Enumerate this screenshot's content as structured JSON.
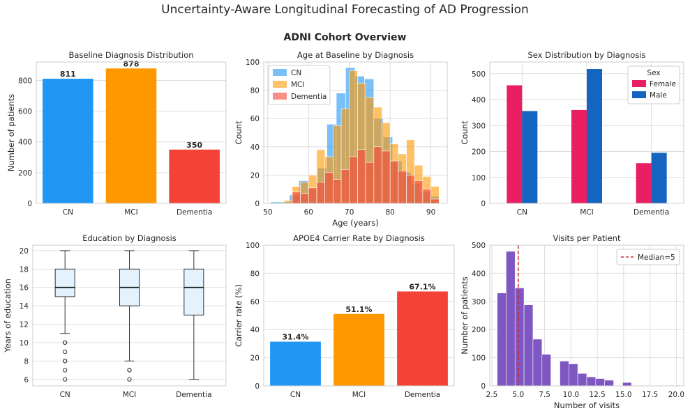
{
  "suptitle": "Uncertainty-Aware Longitudinal Forecasting of AD Progression",
  "subtitle": "ADNI Cohort Overview",
  "colors": {
    "CN": "#2196F3",
    "MCI": "#FF9800",
    "Dementia": "#F44336",
    "Female": "#E91E63",
    "Male": "#1565C0",
    "Visits": "#7E57C2",
    "median": "#d62728",
    "box_fill": "#e3f2fd",
    "grid": "#dddddd"
  },
  "chart_data": [
    {
      "type": "bar",
      "title": "Baseline Diagnosis Distribution",
      "xlabel": "",
      "ylabel": "Number of patients",
      "categories": [
        "CN",
        "MCI",
        "Dementia"
      ],
      "values": [
        811,
        878,
        350
      ],
      "data_labels": [
        "811",
        "878",
        "350"
      ],
      "ylim": [
        0,
        920
      ],
      "yticks": [
        0,
        200,
        400,
        600,
        800
      ],
      "grid": true
    },
    {
      "type": "histogram",
      "title": "Age at Baseline by Diagnosis",
      "xlabel": "Age (years)",
      "ylabel": "Count",
      "xlim": [
        49,
        94
      ],
      "ylim": [
        0,
        100
      ],
      "xticks": [
        50,
        60,
        70,
        80,
        90
      ],
      "yticks": [
        0,
        20,
        40,
        60,
        80,
        100
      ],
      "legend_position": "top-left",
      "grid": true,
      "series": [
        {
          "name": "CN",
          "bin_width": 2.3,
          "bins": [
            [
              50.7,
              1
            ],
            [
              53.0,
              1
            ],
            [
              55.3,
              6
            ],
            [
              57.6,
              16
            ],
            [
              59.9,
              10
            ],
            [
              62.2,
              25
            ],
            [
              64.5,
              56
            ],
            [
              66.8,
              78
            ],
            [
              69.1,
              96
            ],
            [
              71.4,
              90
            ],
            [
              73.7,
              88
            ],
            [
              76.0,
              60
            ],
            [
              78.3,
              47
            ],
            [
              80.6,
              30
            ],
            [
              82.9,
              22
            ],
            [
              85.2,
              14
            ],
            [
              87.5,
              8
            ],
            [
              89.8,
              5
            ]
          ]
        },
        {
          "name": "MCI",
          "bin_width": 2.0,
          "bins": [
            [
              54,
              2
            ],
            [
              56,
              12
            ],
            [
              58,
              15
            ],
            [
              60,
              20
            ],
            [
              62,
              38
            ],
            [
              64,
              33
            ],
            [
              66,
              55
            ],
            [
              68,
              67
            ],
            [
              70,
              94
            ],
            [
              72,
              85
            ],
            [
              74,
              75
            ],
            [
              76,
              68
            ],
            [
              78,
              57
            ],
            [
              80,
              42
            ],
            [
              82,
              35
            ],
            [
              84,
              45
            ],
            [
              86,
              27
            ],
            [
              88,
              19
            ],
            [
              90,
              12
            ]
          ]
        },
        {
          "name": "Dementia",
          "bin_width": 2.0,
          "bins": [
            [
              56,
              8
            ],
            [
              58,
              7
            ],
            [
              60,
              11
            ],
            [
              62,
              15
            ],
            [
              64,
              22
            ],
            [
              66,
              17
            ],
            [
              68,
              24
            ],
            [
              70,
              33
            ],
            [
              72,
              38
            ],
            [
              74,
              29
            ],
            [
              76,
              40
            ],
            [
              78,
              37
            ],
            [
              80,
              30
            ],
            [
              82,
              23
            ],
            [
              84,
              20
            ],
            [
              86,
              16
            ],
            [
              88,
              10
            ],
            [
              90,
              3
            ]
          ]
        }
      ]
    },
    {
      "type": "bar",
      "title": "Sex Distribution by Diagnosis",
      "xlabel": "",
      "ylabel": "Count",
      "categories": [
        "CN",
        "MCI",
        "Dementia"
      ],
      "legend_title": "Sex",
      "legend_position": "top-right",
      "ylim": [
        0,
        545
      ],
      "yticks": [
        0,
        100,
        200,
        300,
        400,
        500
      ],
      "grid": true,
      "series": [
        {
          "name": "Female",
          "values": [
            455,
            360,
            155
          ]
        },
        {
          "name": "Male",
          "values": [
            356,
            518,
            195
          ]
        }
      ]
    },
    {
      "type": "box",
      "title": "Education by Diagnosis",
      "xlabel": "",
      "ylabel": "Years of education",
      "categories": [
        "CN",
        "MCI",
        "Dementia"
      ],
      "ylim": [
        5.3,
        20.6
      ],
      "yticks": [
        6,
        8,
        10,
        12,
        14,
        16,
        18,
        20
      ],
      "grid": true,
      "boxes": [
        {
          "whisker_low": 11,
          "q1": 15,
          "median": 16,
          "q3": 18,
          "whisker_high": 20,
          "outliers": [
            10,
            10,
            9,
            8,
            8,
            7,
            6
          ]
        },
        {
          "whisker_low": 8,
          "q1": 14,
          "median": 16,
          "q3": 18,
          "whisker_high": 20,
          "outliers": [
            7,
            7,
            6
          ]
        },
        {
          "whisker_low": 6,
          "q1": 13,
          "median": 16,
          "q3": 18,
          "whisker_high": 20,
          "outliers": []
        }
      ]
    },
    {
      "type": "bar",
      "title": "APOE4 Carrier Rate by Diagnosis",
      "xlabel": "",
      "ylabel": "Carrier rate (%)",
      "categories": [
        "CN",
        "MCI",
        "Dementia"
      ],
      "values": [
        31.4,
        51.1,
        67.1
      ],
      "data_labels": [
        "31.4%",
        "51.1%",
        "67.1%"
      ],
      "ylim": [
        0,
        100
      ],
      "yticks": [
        0,
        20,
        40,
        60,
        80,
        100
      ],
      "grid": true
    },
    {
      "type": "histogram",
      "title": "Visits per Patient",
      "xlabel": "Number of visits",
      "ylabel": "Number of patients",
      "xlim": [
        2.3,
        20.7
      ],
      "ylim": [
        0,
        500
      ],
      "xticks": [
        2.5,
        5.0,
        7.5,
        10.0,
        12.5,
        15.0,
        17.5,
        20.0
      ],
      "xtick_labels": [
        "2.5",
        "5.0",
        "7.5",
        "10.0",
        "12.5",
        "15.0",
        "17.5",
        "20.0"
      ],
      "yticks": [
        0,
        100,
        200,
        300,
        400,
        500
      ],
      "median": 5,
      "median_label": "Median=5",
      "legend_position": "top-right",
      "grid": true,
      "series": [
        {
          "name": "Visits",
          "bin_width": 0.85,
          "bins": [
            [
              3.0,
              330
            ],
            [
              3.85,
              478
            ],
            [
              4.7,
              348
            ],
            [
              5.55,
              288
            ],
            [
              6.4,
              166
            ],
            [
              7.25,
              112
            ],
            [
              8.1,
              0
            ],
            [
              8.95,
              88
            ],
            [
              9.8,
              78
            ],
            [
              10.65,
              44
            ],
            [
              11.5,
              32
            ],
            [
              12.35,
              26
            ],
            [
              13.2,
              20
            ],
            [
              14.05,
              0
            ],
            [
              14.9,
              12
            ]
          ]
        }
      ]
    }
  ]
}
